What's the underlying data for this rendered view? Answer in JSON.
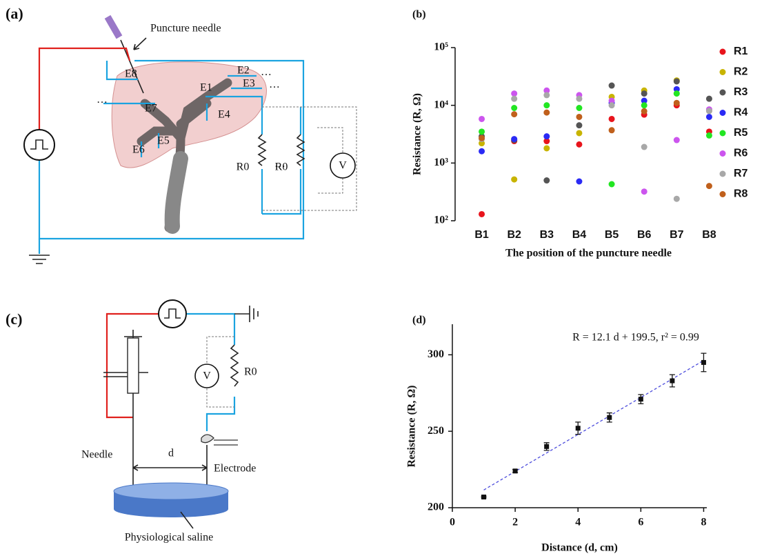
{
  "diagram_a": {
    "panel_label": "(a)",
    "needle_label": "Puncture needle",
    "electrodes": [
      "E1",
      "E2",
      "E3",
      "E4",
      "E5",
      "E6",
      "E7",
      "E8"
    ],
    "resistor_labels": [
      "R0",
      "R0"
    ],
    "meter_label": "V"
  },
  "diagram_c": {
    "panel_label": "(c)",
    "meter_label": "V",
    "resistor_label": "R0",
    "needle_label": "Needle",
    "distance_label": "d",
    "electrode_label": "Electrode",
    "dish_label": "Physiological saline"
  },
  "chart_data": [
    {
      "type": "dot",
      "panel_label": "(b)",
      "xlabel": "The position of the puncture needle",
      "ylabel": "Resistance (R, Ω)",
      "categories": [
        "B1",
        "B2",
        "B3",
        "B4",
        "B5",
        "B6",
        "B7",
        "B8"
      ],
      "log_scale": true,
      "ylim": [
        100,
        100000
      ],
      "yticks": [
        {
          "value": 100,
          "label": "10²"
        },
        {
          "value": 1000,
          "label": "10³"
        },
        {
          "value": 10000,
          "label": "10⁴"
        },
        {
          "value": 100000,
          "label": "10⁵"
        }
      ],
      "legend": "right",
      "series": [
        {
          "name": "R1",
          "color": "#e8141c",
          "values": [
            130,
            2400,
            2400,
            2100,
            5800,
            6900,
            10000,
            3500
          ]
        },
        {
          "name": "R2",
          "color": "#c8b400",
          "values": [
            2200,
            520,
            1800,
            3300,
            14000,
            18000,
            27000,
            8000
          ]
        },
        {
          "name": "R3",
          "color": "#555555",
          "values": [
            2900,
            2500,
            500,
            4500,
            22000,
            16000,
            26000,
            13000
          ]
        },
        {
          "name": "R4",
          "color": "#2a2af5",
          "values": [
            1600,
            2600,
            2900,
            480,
            11000,
            12000,
            19000,
            6300
          ]
        },
        {
          "name": "R5",
          "color": "#22e622",
          "values": [
            3500,
            9000,
            10000,
            9000,
            430,
            10000,
            16000,
            3000
          ]
        },
        {
          "name": "R6",
          "color": "#cc55ee",
          "values": [
            5800,
            16000,
            18000,
            15000,
            12000,
            320,
            2500,
            8500
          ]
        },
        {
          "name": "R7",
          "color": "#a8a8a8",
          "values": [
            2600,
            13000,
            15000,
            13000,
            10000,
            1900,
            240,
            8000
          ]
        },
        {
          "name": "R8",
          "color": "#c0601c",
          "values": [
            2700,
            7000,
            7500,
            6300,
            3700,
            7900,
            11000,
            400
          ]
        }
      ]
    },
    {
      "type": "scatter",
      "panel_label": "(d)",
      "xlabel": "Distance (d, cm)",
      "ylabel": "Resistance (R, Ω)",
      "annotation": "R = 12.1 d + 199.5, r² = 0.99",
      "x": [
        1,
        2,
        3,
        4,
        5,
        6,
        7,
        8
      ],
      "values": [
        207,
        224,
        240,
        252,
        259,
        271,
        283,
        295
      ],
      "errors": [
        0.5,
        1,
        2.5,
        4,
        3,
        3,
        4,
        6
      ],
      "color": "#111111",
      "fit": {
        "slope": 12.1,
        "intercept": 199.5
      },
      "xlim": [
        0,
        8.1
      ],
      "xticks": [
        0,
        2,
        4,
        6,
        8
      ],
      "ylim": [
        200,
        320
      ],
      "yticks": [
        200,
        250,
        300
      ]
    }
  ]
}
